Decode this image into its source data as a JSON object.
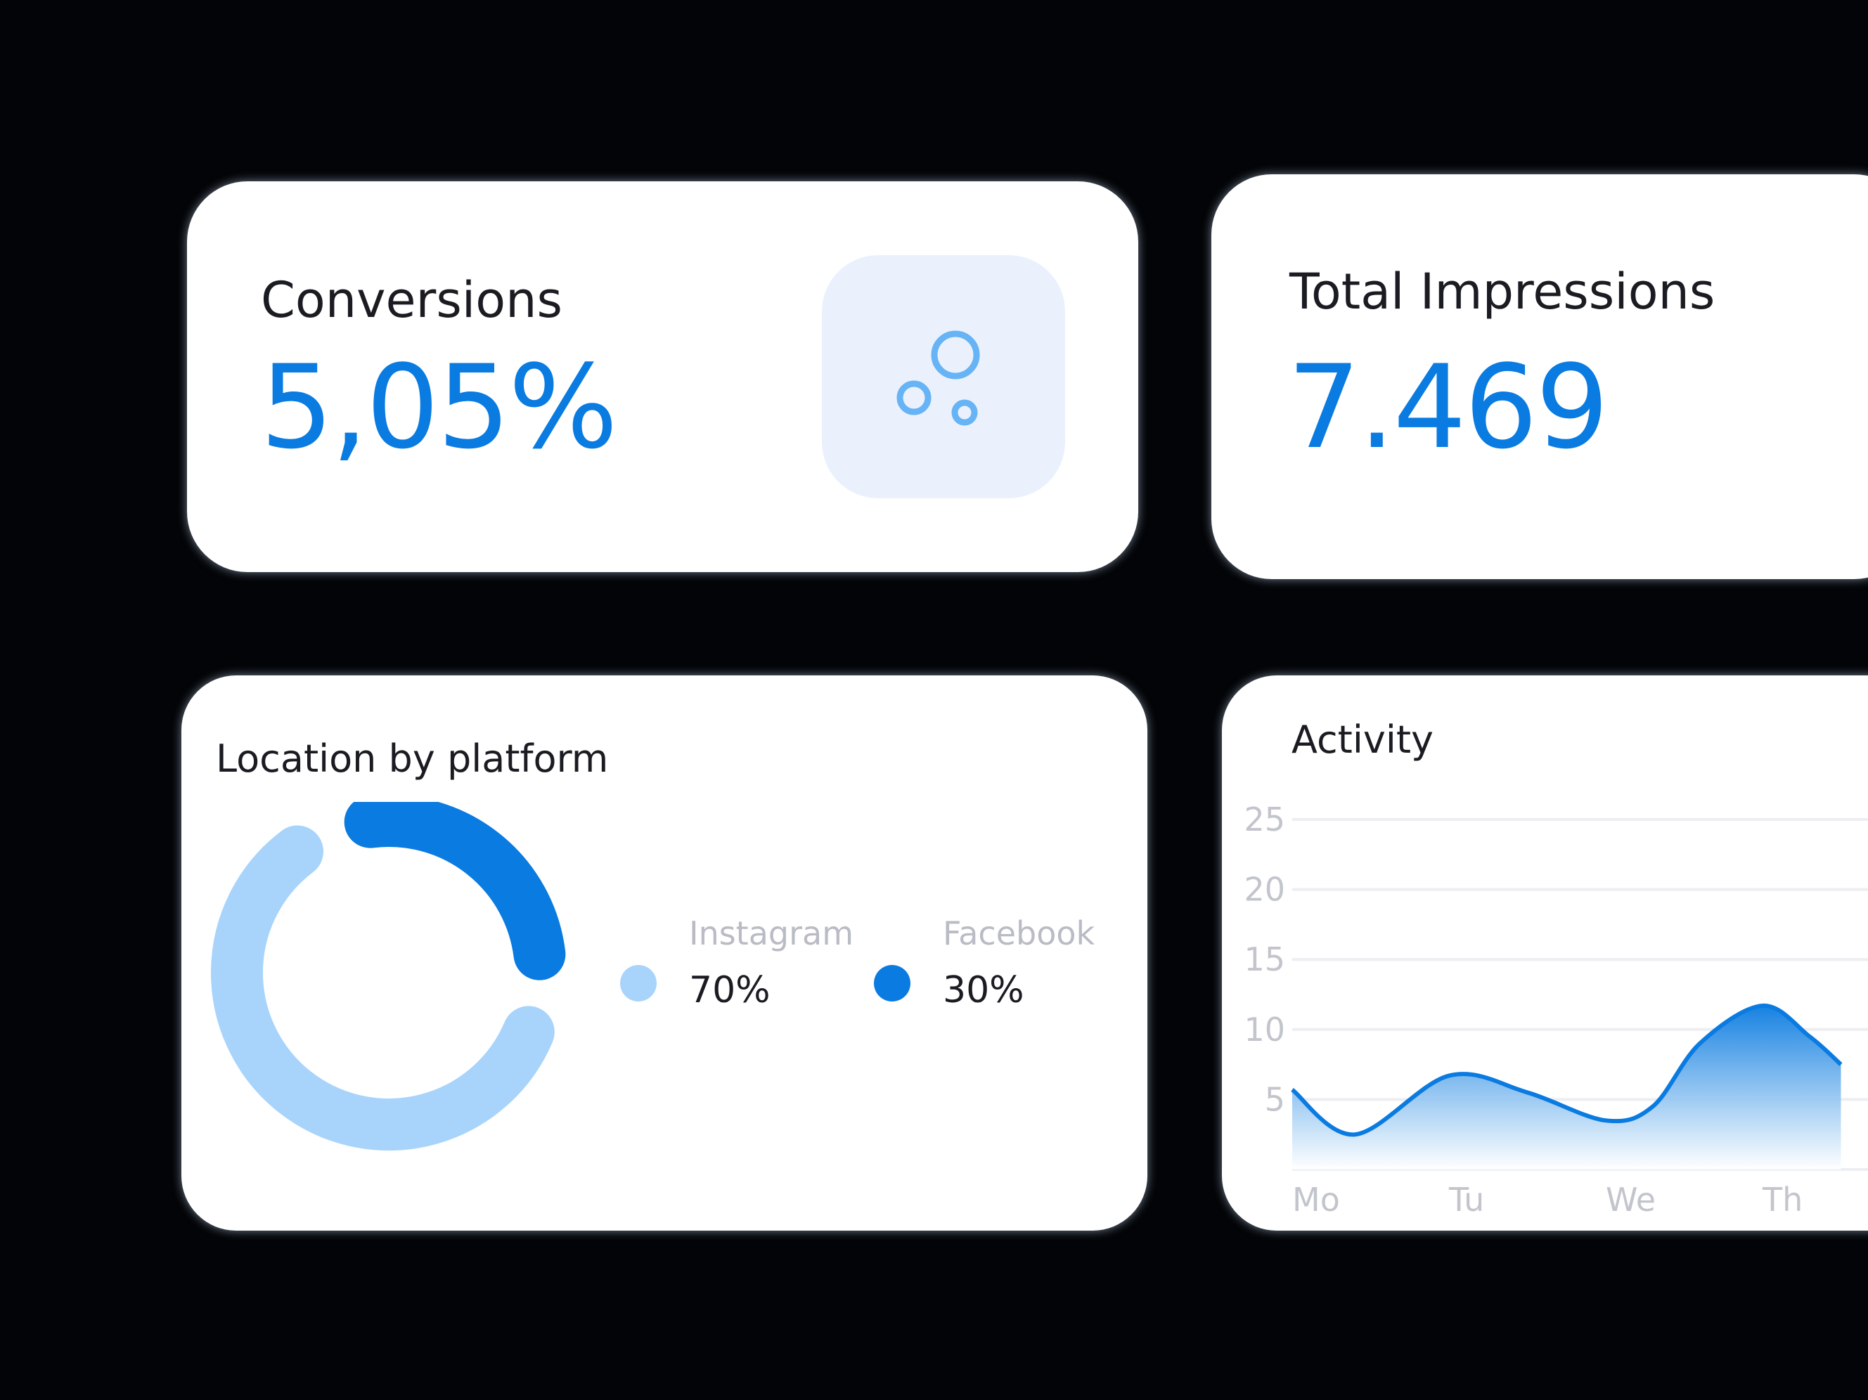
{
  "colors": {
    "background": "#020407",
    "card": "#ffffff",
    "accent": "#0a7be0",
    "accent_light": "#a8d4fb",
    "icon_tile": "#ebf1fc",
    "muted_text": "#b9bcc4"
  },
  "conversions": {
    "label": "Conversions",
    "value": "5,05%",
    "icon": "bubbles-icon"
  },
  "impressions": {
    "label": "Total Impressions",
    "value": "7.469"
  },
  "location": {
    "title": "Location by platform",
    "legend": [
      {
        "name": "Instagram",
        "value": "70%",
        "percent": 70,
        "color": "#a8d4fb"
      },
      {
        "name": "Facebook",
        "value": "30%",
        "percent": 30,
        "color": "#0a7be0"
      }
    ]
  },
  "activity": {
    "title": "Activity"
  },
  "chart_data": [
    {
      "type": "pie",
      "title": "Location by platform",
      "categories": [
        "Instagram",
        "Facebook"
      ],
      "values": [
        70,
        30
      ],
      "unit": "%"
    },
    {
      "type": "area",
      "title": "Activity",
      "x": [
        "Mo",
        "Tu",
        "We",
        "Th"
      ],
      "y_ticks": [
        "25",
        "20",
        "15",
        "10",
        "5"
      ],
      "ylim": [
        0,
        25
      ],
      "grid": true,
      "series": [
        {
          "x": [
            0,
            0.4,
            1.0,
            1.5,
            2.0,
            2.3,
            2.6,
            3.0,
            3.3,
            3.5
          ],
          "values": [
            5.7,
            2.5,
            6.7,
            5.5,
            3.5,
            4.5,
            9.0,
            11.7,
            9.5,
            7.5
          ]
        }
      ]
    }
  ]
}
